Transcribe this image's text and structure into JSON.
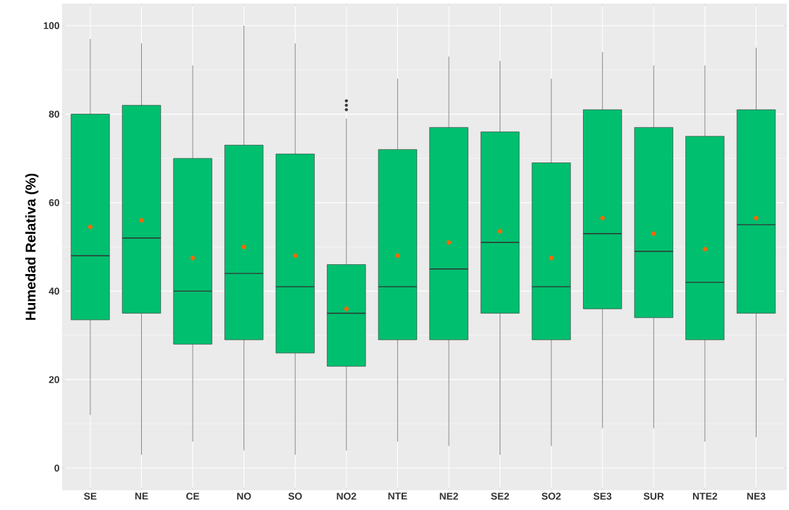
{
  "chart_data": {
    "type": "box",
    "ylabel": "Humedad Relativa (%)",
    "categories": [
      "SE",
      "NE",
      "CE",
      "NO",
      "SO",
      "NO2",
      "NTE",
      "NE2",
      "SE2",
      "SO2",
      "SE3",
      "SUR",
      "NTE2",
      "NE3"
    ],
    "ylim": [
      -5,
      105
    ],
    "yticks": [
      0,
      20,
      40,
      60,
      80,
      100
    ],
    "grid": true,
    "series": [
      {
        "color": "#00bf6f",
        "boxes": [
          {
            "low": 12,
            "q1": 33.5,
            "median": 48,
            "q3": 80,
            "high": 97,
            "mean": 54.5
          },
          {
            "low": 3,
            "q1": 35,
            "median": 52,
            "q3": 82,
            "high": 96,
            "mean": 56
          },
          {
            "low": 6,
            "q1": 28,
            "median": 40,
            "q3": 70,
            "high": 91,
            "mean": 47.5
          },
          {
            "low": 4,
            "q1": 29,
            "median": 44,
            "q3": 73,
            "high": 100,
            "mean": 50
          },
          {
            "low": 3,
            "q1": 26,
            "median": 41,
            "q3": 71,
            "high": 96,
            "mean": 48
          },
          {
            "low": 4,
            "q1": 23,
            "median": 35,
            "q3": 46,
            "high": 79,
            "mean": 36,
            "outliers": [
              81,
              82,
              83
            ]
          },
          {
            "low": 6,
            "q1": 29,
            "median": 41,
            "q3": 72,
            "high": 88,
            "mean": 48
          },
          {
            "low": 5,
            "q1": 29,
            "median": 45,
            "q3": 77,
            "high": 93,
            "mean": 51
          },
          {
            "low": 3,
            "q1": 35,
            "median": 51,
            "q3": 76,
            "high": 92,
            "mean": 53.5
          },
          {
            "low": 5,
            "q1": 29,
            "median": 41,
            "q3": 69,
            "high": 88,
            "mean": 47.5
          },
          {
            "low": 9,
            "q1": 36,
            "median": 53,
            "q3": 81,
            "high": 94,
            "mean": 56.5
          },
          {
            "low": 9,
            "q1": 34,
            "median": 49,
            "q3": 77,
            "high": 91,
            "mean": 53
          },
          {
            "low": 6,
            "q1": 29,
            "median": 42,
            "q3": 75,
            "high": 91,
            "mean": 49.5
          },
          {
            "low": 7,
            "q1": 35,
            "median": 55,
            "q3": 81,
            "high": 95,
            "mean": 56.5
          }
        ]
      }
    ]
  }
}
